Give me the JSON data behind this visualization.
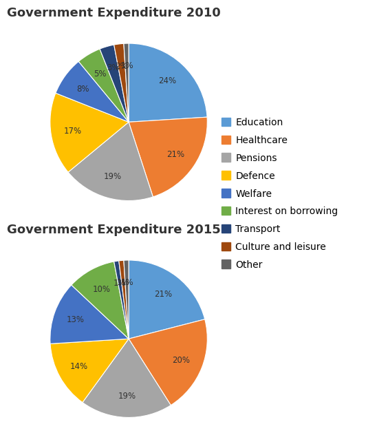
{
  "title_2010": "Government Expenditure 2010",
  "title_2015": "Government Expenditure 2015",
  "categories": [
    "Education",
    "Healthcare",
    "Pensions",
    "Defence",
    "Welfare",
    "Interest on borrowing",
    "Transport",
    "Culture and leisure",
    "Other"
  ],
  "values_2010": [
    24,
    21,
    19,
    17,
    8,
    5,
    3,
    2,
    1
  ],
  "values_2015": [
    21,
    20,
    19,
    14,
    13,
    10,
    1,
    1,
    1
  ],
  "colors_slices": [
    "#5B9BD5",
    "#ED7D31",
    "#A5A5A5",
    "#FFC000",
    "#4472C4",
    "#70AD47",
    "#264478",
    "#9E480E",
    "#636363"
  ],
  "background": "#FFFFFF",
  "title_fontsize": 13,
  "label_fontsize": 8.5,
  "legend_fontsize": 10
}
